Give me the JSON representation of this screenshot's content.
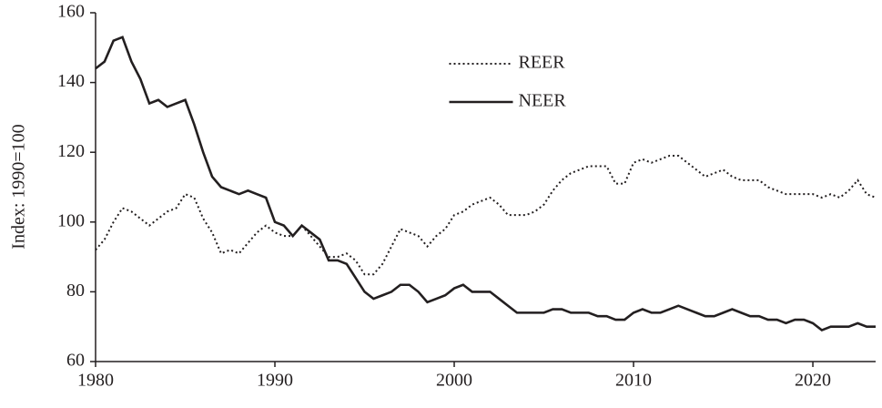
{
  "chart_data": {
    "type": "line",
    "ylabel": "Index: 1990=100",
    "x": [
      1980,
      1980.5,
      1981,
      1981.5,
      1982,
      1982.5,
      1983,
      1983.5,
      1984,
      1984.5,
      1985,
      1985.5,
      1986,
      1986.5,
      1987,
      1987.5,
      1988,
      1988.5,
      1989,
      1989.5,
      1990,
      1990.5,
      1991,
      1991.5,
      1992,
      1992.5,
      1993,
      1993.5,
      1994,
      1994.5,
      1995,
      1995.5,
      1996,
      1996.5,
      1997,
      1997.5,
      1998,
      1998.5,
      1999,
      1999.5,
      2000,
      2000.5,
      2001,
      2001.5,
      2002,
      2002.5,
      2003,
      2003.5,
      2004,
      2004.5,
      2005,
      2005.5,
      2006,
      2006.5,
      2007,
      2007.5,
      2008,
      2008.5,
      2009,
      2009.5,
      2010,
      2010.5,
      2011,
      2011.5,
      2012,
      2012.5,
      2013,
      2013.5,
      2014,
      2014.5,
      2015,
      2015.5,
      2016,
      2016.5,
      2017,
      2017.5,
      2018,
      2018.5,
      2019,
      2019.5,
      2020,
      2020.5,
      2021,
      2021.5,
      2022,
      2022.5,
      2023,
      2023.5
    ],
    "series": [
      {
        "name": "REER",
        "color": "#231f20",
        "dash": "dotted",
        "values": [
          92,
          95,
          100,
          104,
          103,
          101,
          99,
          101,
          103,
          104,
          108,
          107,
          101,
          97,
          91,
          92,
          91,
          94,
          97,
          99,
          97,
          96,
          96,
          99,
          96,
          93,
          90,
          90,
          91,
          89,
          85,
          85,
          88,
          93,
          98,
          97,
          96,
          93,
          96,
          98,
          102,
          103,
          105,
          106,
          107,
          105,
          102,
          102,
          102,
          103,
          105,
          109,
          112,
          114,
          115,
          116,
          116,
          116,
          111,
          111,
          117,
          118,
          117,
          118,
          119,
          119,
          117,
          115,
          113,
          114,
          115,
          113,
          112,
          112,
          112,
          110,
          109,
          108,
          108,
          108,
          108,
          107,
          108,
          107,
          109,
          112,
          108,
          107
        ]
      },
      {
        "name": "NEER",
        "color": "#231f20",
        "dash": "solid",
        "values": [
          144,
          146,
          152,
          153,
          146,
          141,
          134,
          135,
          133,
          134,
          135,
          128,
          120,
          113,
          110,
          109,
          108,
          109,
          108,
          107,
          100,
          99,
          96,
          99,
          97,
          95,
          89,
          89,
          88,
          84,
          80,
          78,
          79,
          80,
          82,
          82,
          80,
          77,
          78,
          79,
          81,
          82,
          80,
          80,
          80,
          78,
          76,
          74,
          74,
          74,
          74,
          75,
          75,
          74,
          74,
          74,
          73,
          73,
          72,
          72,
          74,
          75,
          74,
          74,
          75,
          76,
          75,
          74,
          73,
          73,
          74,
          75,
          74,
          73,
          73,
          72,
          72,
          71,
          72,
          72,
          71,
          69,
          70,
          70,
          70,
          71,
          70,
          70
        ]
      }
    ],
    "xlim": [
      1980,
      2023.5
    ],
    "ylim": [
      60,
      160
    ],
    "xticks": [
      1980,
      1990,
      2000,
      2010,
      2020
    ],
    "yticks": [
      60,
      80,
      100,
      120,
      140,
      160
    ],
    "grid": false,
    "legend": "upper center"
  }
}
